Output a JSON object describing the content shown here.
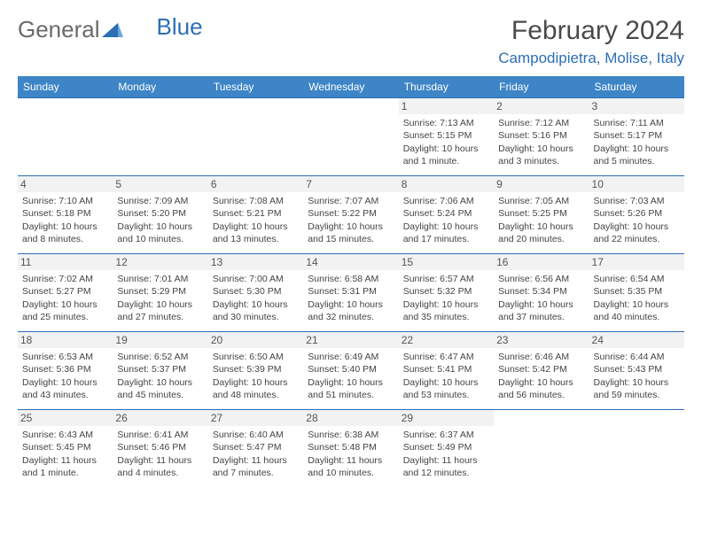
{
  "logo": {
    "textGeneral": "General",
    "textBlue": "Blue"
  },
  "title": "February 2024",
  "location": "Campodipietra, Molise, Italy",
  "colors": {
    "headerBg": "#3d85c6",
    "headerText": "#ffffff",
    "accent": "#2d6fb5",
    "bodyText": "#444444",
    "dayBg": "#f2f2f2"
  },
  "fonts": {
    "title_pt": 30,
    "location_pt": 17,
    "header_pt": 12,
    "daynum_pt": 12,
    "body_pt": 10.5
  },
  "dayHeaders": [
    "Sunday",
    "Monday",
    "Tuesday",
    "Wednesday",
    "Thursday",
    "Friday",
    "Saturday"
  ],
  "weeks": [
    [
      null,
      null,
      null,
      null,
      {
        "n": "1",
        "sunrise": "Sunrise: 7:13 AM",
        "sunset": "Sunset: 5:15 PM",
        "daylight": "Daylight: 10 hours and 1 minute."
      },
      {
        "n": "2",
        "sunrise": "Sunrise: 7:12 AM",
        "sunset": "Sunset: 5:16 PM",
        "daylight": "Daylight: 10 hours and 3 minutes."
      },
      {
        "n": "3",
        "sunrise": "Sunrise: 7:11 AM",
        "sunset": "Sunset: 5:17 PM",
        "daylight": "Daylight: 10 hours and 5 minutes."
      }
    ],
    [
      {
        "n": "4",
        "sunrise": "Sunrise: 7:10 AM",
        "sunset": "Sunset: 5:18 PM",
        "daylight": "Daylight: 10 hours and 8 minutes."
      },
      {
        "n": "5",
        "sunrise": "Sunrise: 7:09 AM",
        "sunset": "Sunset: 5:20 PM",
        "daylight": "Daylight: 10 hours and 10 minutes."
      },
      {
        "n": "6",
        "sunrise": "Sunrise: 7:08 AM",
        "sunset": "Sunset: 5:21 PM",
        "daylight": "Daylight: 10 hours and 13 minutes."
      },
      {
        "n": "7",
        "sunrise": "Sunrise: 7:07 AM",
        "sunset": "Sunset: 5:22 PM",
        "daylight": "Daylight: 10 hours and 15 minutes."
      },
      {
        "n": "8",
        "sunrise": "Sunrise: 7:06 AM",
        "sunset": "Sunset: 5:24 PM",
        "daylight": "Daylight: 10 hours and 17 minutes."
      },
      {
        "n": "9",
        "sunrise": "Sunrise: 7:05 AM",
        "sunset": "Sunset: 5:25 PM",
        "daylight": "Daylight: 10 hours and 20 minutes."
      },
      {
        "n": "10",
        "sunrise": "Sunrise: 7:03 AM",
        "sunset": "Sunset: 5:26 PM",
        "daylight": "Daylight: 10 hours and 22 minutes."
      }
    ],
    [
      {
        "n": "11",
        "sunrise": "Sunrise: 7:02 AM",
        "sunset": "Sunset: 5:27 PM",
        "daylight": "Daylight: 10 hours and 25 minutes."
      },
      {
        "n": "12",
        "sunrise": "Sunrise: 7:01 AM",
        "sunset": "Sunset: 5:29 PM",
        "daylight": "Daylight: 10 hours and 27 minutes."
      },
      {
        "n": "13",
        "sunrise": "Sunrise: 7:00 AM",
        "sunset": "Sunset: 5:30 PM",
        "daylight": "Daylight: 10 hours and 30 minutes."
      },
      {
        "n": "14",
        "sunrise": "Sunrise: 6:58 AM",
        "sunset": "Sunset: 5:31 PM",
        "daylight": "Daylight: 10 hours and 32 minutes."
      },
      {
        "n": "15",
        "sunrise": "Sunrise: 6:57 AM",
        "sunset": "Sunset: 5:32 PM",
        "daylight": "Daylight: 10 hours and 35 minutes."
      },
      {
        "n": "16",
        "sunrise": "Sunrise: 6:56 AM",
        "sunset": "Sunset: 5:34 PM",
        "daylight": "Daylight: 10 hours and 37 minutes."
      },
      {
        "n": "17",
        "sunrise": "Sunrise: 6:54 AM",
        "sunset": "Sunset: 5:35 PM",
        "daylight": "Daylight: 10 hours and 40 minutes."
      }
    ],
    [
      {
        "n": "18",
        "sunrise": "Sunrise: 6:53 AM",
        "sunset": "Sunset: 5:36 PM",
        "daylight": "Daylight: 10 hours and 43 minutes."
      },
      {
        "n": "19",
        "sunrise": "Sunrise: 6:52 AM",
        "sunset": "Sunset: 5:37 PM",
        "daylight": "Daylight: 10 hours and 45 minutes."
      },
      {
        "n": "20",
        "sunrise": "Sunrise: 6:50 AM",
        "sunset": "Sunset: 5:39 PM",
        "daylight": "Daylight: 10 hours and 48 minutes."
      },
      {
        "n": "21",
        "sunrise": "Sunrise: 6:49 AM",
        "sunset": "Sunset: 5:40 PM",
        "daylight": "Daylight: 10 hours and 51 minutes."
      },
      {
        "n": "22",
        "sunrise": "Sunrise: 6:47 AM",
        "sunset": "Sunset: 5:41 PM",
        "daylight": "Daylight: 10 hours and 53 minutes."
      },
      {
        "n": "23",
        "sunrise": "Sunrise: 6:46 AM",
        "sunset": "Sunset: 5:42 PM",
        "daylight": "Daylight: 10 hours and 56 minutes."
      },
      {
        "n": "24",
        "sunrise": "Sunrise: 6:44 AM",
        "sunset": "Sunset: 5:43 PM",
        "daylight": "Daylight: 10 hours and 59 minutes."
      }
    ],
    [
      {
        "n": "25",
        "sunrise": "Sunrise: 6:43 AM",
        "sunset": "Sunset: 5:45 PM",
        "daylight": "Daylight: 11 hours and 1 minute."
      },
      {
        "n": "26",
        "sunrise": "Sunrise: 6:41 AM",
        "sunset": "Sunset: 5:46 PM",
        "daylight": "Daylight: 11 hours and 4 minutes."
      },
      {
        "n": "27",
        "sunrise": "Sunrise: 6:40 AM",
        "sunset": "Sunset: 5:47 PM",
        "daylight": "Daylight: 11 hours and 7 minutes."
      },
      {
        "n": "28",
        "sunrise": "Sunrise: 6:38 AM",
        "sunset": "Sunset: 5:48 PM",
        "daylight": "Daylight: 11 hours and 10 minutes."
      },
      {
        "n": "29",
        "sunrise": "Sunrise: 6:37 AM",
        "sunset": "Sunset: 5:49 PM",
        "daylight": "Daylight: 11 hours and 12 minutes."
      },
      null,
      null
    ]
  ]
}
